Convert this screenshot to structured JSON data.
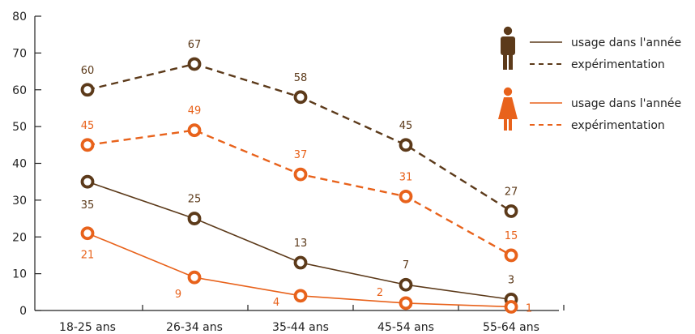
{
  "chart_data": {
    "type": "line",
    "categories": [
      "18-25 ans",
      "26-34 ans",
      "35-44 ans",
      "45-54 ans",
      "55-64 ans"
    ],
    "ylim": [
      0,
      80
    ],
    "yticks": [
      "0",
      "10",
      "20",
      "30",
      "40",
      "50",
      "60",
      "70",
      "80"
    ],
    "grid": false,
    "legend_position": "top-right",
    "legend": {
      "men": {
        "icon": "man-icon",
        "usage": "usage dans l'année",
        "experimentation": "expérimentation"
      },
      "women": {
        "icon": "woman-icon",
        "usage": "usage dans l'année",
        "experimentation": "expérimentation"
      }
    },
    "series": [
      {
        "group": "men",
        "kind": "experimentation",
        "color": "#5c3a1a",
        "dashed": true,
        "values": [
          60,
          67,
          58,
          45,
          27
        ]
      },
      {
        "group": "women",
        "kind": "experimentation",
        "color": "#e8621b",
        "dashed": true,
        "values": [
          45,
          49,
          37,
          31,
          15
        ]
      },
      {
        "group": "men",
        "kind": "usage",
        "color": "#5c3a1a",
        "dashed": false,
        "values": [
          35,
          25,
          13,
          7,
          3
        ]
      },
      {
        "group": "women",
        "kind": "usage",
        "color": "#e8621b",
        "dashed": false,
        "values": [
          21,
          9,
          4,
          2,
          1
        ]
      }
    ],
    "colors": {
      "men": "#5c3a1a",
      "women": "#e8621b",
      "axis": "#222222"
    }
  }
}
